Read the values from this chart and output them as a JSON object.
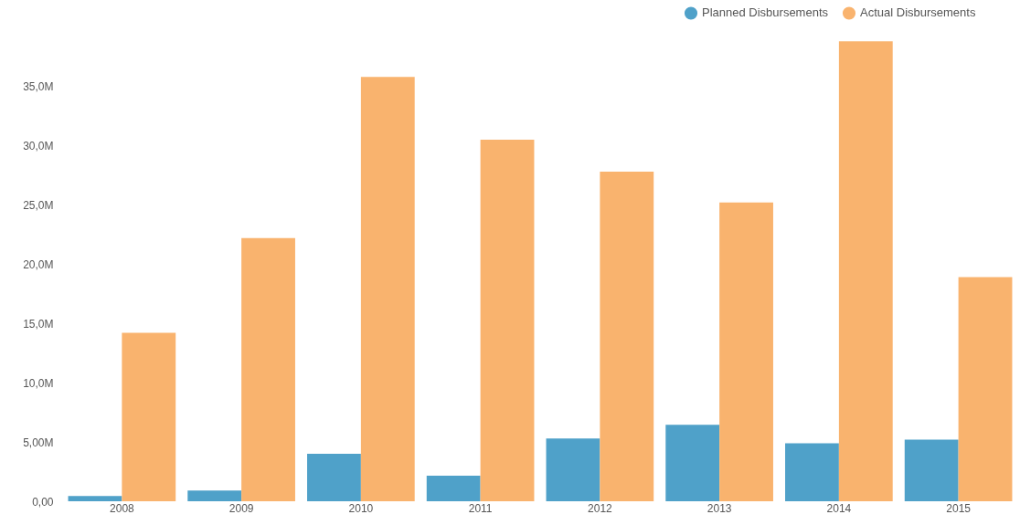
{
  "chart_data": {
    "type": "bar",
    "categories": [
      "2008",
      "2009",
      "2010",
      "2011",
      "2012",
      "2013",
      "2014",
      "2015"
    ],
    "series": [
      {
        "name": "Planned Disbursements",
        "color": "#4fa1c9",
        "values": [
          0.45,
          0.9,
          4.0,
          2.15,
          5.3,
          6.45,
          4.9,
          5.2
        ]
      },
      {
        "name": "Actual Disbursements",
        "color": "#f9b36e",
        "values": [
          14.2,
          22.2,
          35.8,
          30.5,
          27.8,
          25.2,
          38.8,
          18.9
        ]
      }
    ],
    "ylim": [
      0,
      39.2
    ],
    "yticks": [
      {
        "value": 0,
        "label": "0,00"
      },
      {
        "value": 5,
        "label": "5,00M"
      },
      {
        "value": 10,
        "label": "10,0M"
      },
      {
        "value": 15,
        "label": "15,0M"
      },
      {
        "value": 20,
        "label": "20,0M"
      },
      {
        "value": 25,
        "label": "25,0M"
      },
      {
        "value": 30,
        "label": "30,0M"
      },
      {
        "value": 35,
        "label": "35,0M"
      }
    ],
    "grid": false,
    "legend": "top right"
  }
}
